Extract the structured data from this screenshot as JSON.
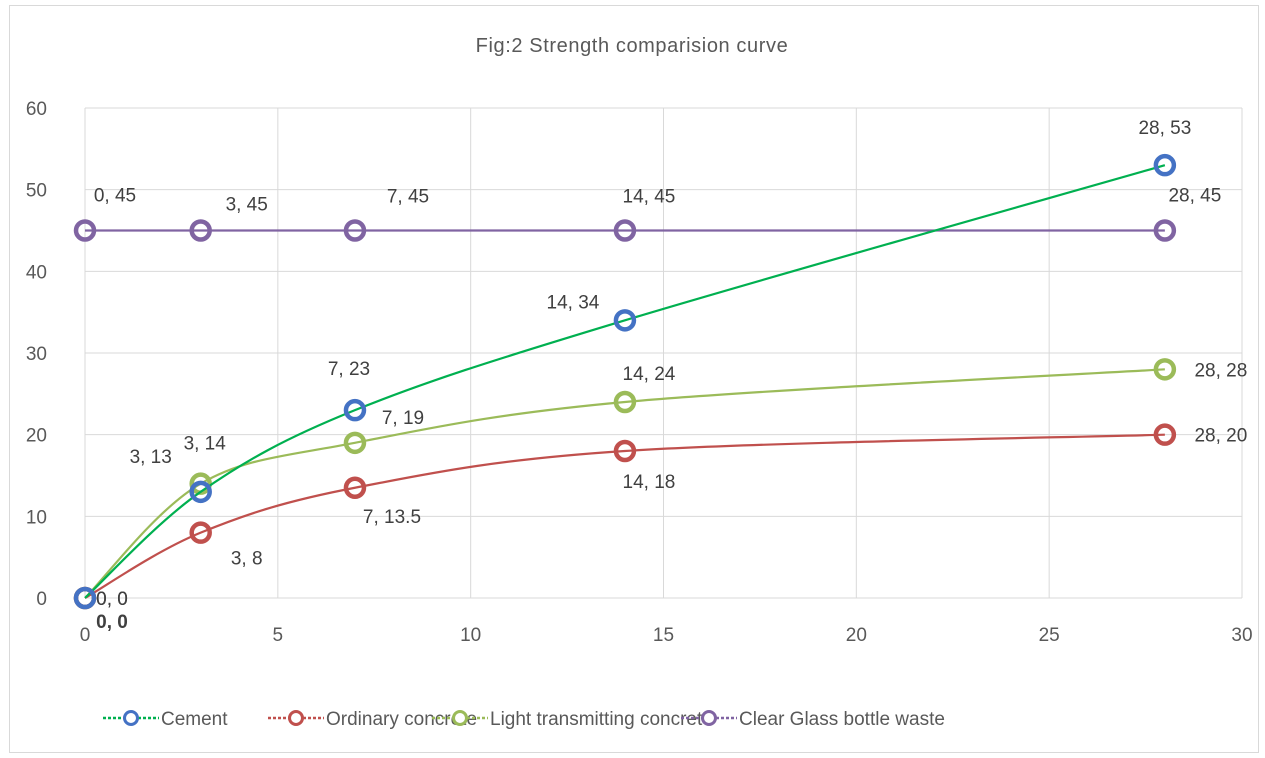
{
  "chart_data": {
    "type": "scatter",
    "title": "Fig:2 Strength comparision curve",
    "xlabel": "",
    "ylabel": "",
    "xlim": [
      0,
      30
    ],
    "ylim": [
      0,
      60
    ],
    "x_ticks": [
      "0",
      "5",
      "10",
      "15",
      "20",
      "25",
      "30"
    ],
    "y_ticks": [
      "0",
      "10",
      "20",
      "30",
      "40",
      "50",
      "60"
    ],
    "grid": true,
    "smooth_lines": true,
    "legend_position": "bottom",
    "series": [
      {
        "name": "Cement",
        "color": "#00b050",
        "marker_color": "#4472c4",
        "points": [
          [
            0,
            0
          ],
          [
            3,
            13
          ],
          [
            7,
            23
          ],
          [
            14,
            34
          ],
          [
            28,
            53
          ]
        ],
        "labels": [
          "0, 0",
          "3, 13",
          "7, 23",
          "14, 34",
          "28, 53"
        ]
      },
      {
        "name": "Ordinary concrete",
        "color": "#c0504d",
        "marker_color": "#c0504d",
        "points": [
          [
            0,
            0
          ],
          [
            3,
            8
          ],
          [
            7,
            13.5
          ],
          [
            14,
            18
          ],
          [
            28,
            20
          ]
        ],
        "labels": [
          "0, 0",
          "3, 8",
          "7, 13.5",
          "14, 18",
          "28, 20"
        ]
      },
      {
        "name": "Light transmitting concrete",
        "color": "#9bbb59",
        "marker_color": "#9bbb59",
        "points": [
          [
            0,
            0
          ],
          [
            3,
            14
          ],
          [
            7,
            19
          ],
          [
            14,
            24
          ],
          [
            28,
            28
          ]
        ],
        "labels": [
          "0, 0",
          "3, 14",
          "7, 19",
          "14, 24",
          "28, 28"
        ]
      },
      {
        "name": "Clear Glass bottle waste",
        "color": "#8064a2",
        "marker_color": "#8064a2",
        "points": [
          [
            0,
            45
          ],
          [
            3,
            45
          ],
          [
            7,
            45
          ],
          [
            14,
            45
          ],
          [
            28,
            45
          ]
        ],
        "labels": [
          "0, 45",
          "3, 45",
          "7, 45",
          "14, 45",
          "28, 45"
        ]
      }
    ]
  }
}
